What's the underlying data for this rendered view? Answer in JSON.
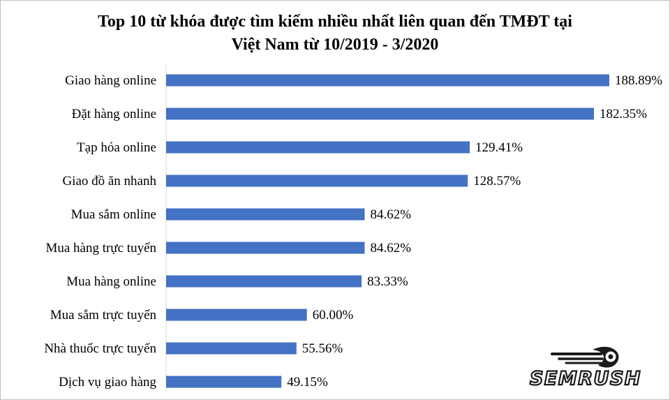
{
  "chart_data": {
    "type": "bar",
    "orientation": "horizontal",
    "title_lines": [
      "Top 10 từ khóa được tìm kiếm nhiều nhất liên quan đến TMĐT tại",
      "Việt Nam từ 10/2019 - 3/2020"
    ],
    "categories": [
      "Giao hàng online",
      "Đặt hàng online",
      "Tạp hóa online",
      "Giao  đồ ăn nhanh",
      "Mua sắm online",
      "Mua hàng trực tuyến",
      "Mua hàng online",
      "Mua sắm trực tuyến",
      "Nhà thuốc trực tuyến",
      "Dịch vụ giao hàng"
    ],
    "values": [
      188.89,
      182.35,
      129.41,
      128.57,
      84.62,
      84.62,
      83.33,
      60.0,
      55.56,
      49.15
    ],
    "data_labels": [
      "188.89%",
      "182.35%",
      "129.41%",
      "128.57%",
      "84.62%",
      "84.62%",
      "83.33%",
      "60.00%",
      "55.56%",
      "49.15%"
    ],
    "xlim": [
      0,
      200
    ],
    "bar_color": "#4472c4",
    "grid": false,
    "legend": "none"
  },
  "logo": {
    "text": "SEMRUSH",
    "name": "semrush-logo"
  }
}
